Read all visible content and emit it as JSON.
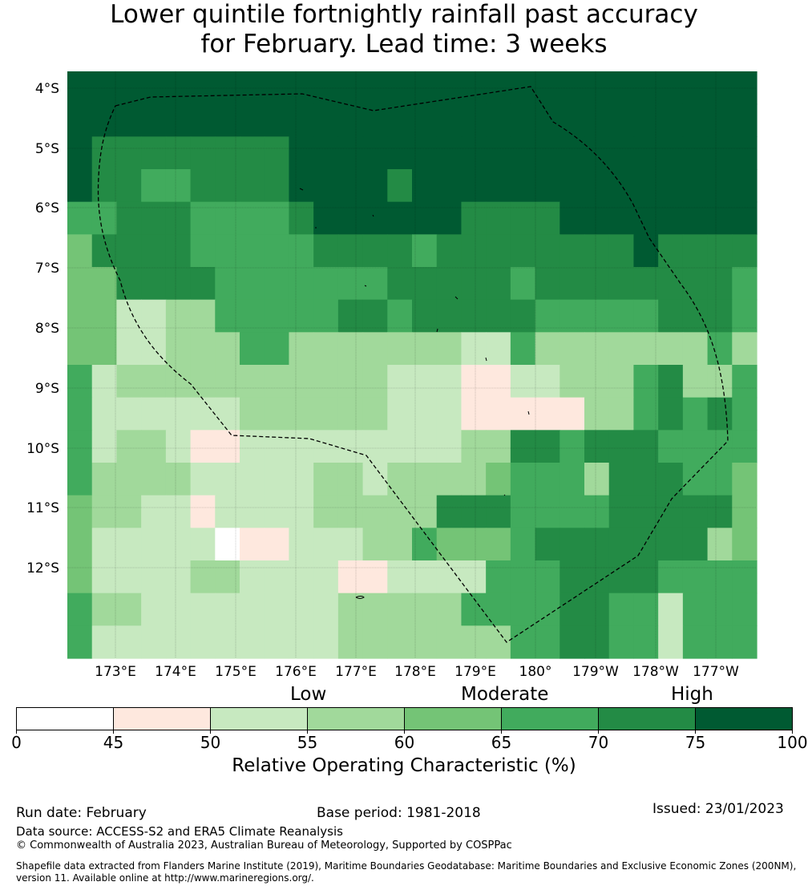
{
  "title_line1": "Lower quintile fortnightly rainfall past accuracy",
  "title_line2": "for February. Lead time: 3 weeks",
  "map": {
    "lat_labels": [
      "4°S",
      "5°S",
      "6°S",
      "7°S",
      "8°S",
      "9°S",
      "10°S",
      "11°S",
      "12°S"
    ],
    "lon_labels": [
      "173°E",
      "174°E",
      "175°E",
      "176°E",
      "177°E",
      "178°E",
      "179°E",
      "180°",
      "179°W",
      "178°W",
      "177°W"
    ],
    "colors": {
      "c45": "#fee8de",
      "c50": "#c7e9c0",
      "c55": "#a1d99b",
      "c60": "#74c476",
      "c65": "#41ab5d",
      "c70": "#238b45",
      "c75": "#005a32"
    }
  },
  "chart_data": {
    "type": "heatmap",
    "title": "Lower quintile fortnightly rainfall past accuracy for February. Lead time: 3 weeks",
    "lon_range": [
      "172°E",
      "176.6°W"
    ],
    "lat_range": [
      "3.7°S",
      "13.6°S"
    ],
    "value_units": "ROC %",
    "rows": [
      "7777777777777777777777777777",
      "7777777777777777777777777777",
      "7666666667777777777777777777",
      "7665566667777677777777777777",
      "5566655556777777666677777777",
      "4666655555666656666666676666",
      "4466665555555666665666666665",
      "4422335555566566666555556665",
      "4422333553333333225333333353",
      "5233333333333222112233356335",
      "5222222333333222111113356565",
      "5233211222222222336656665555",
      "5333322222332333345553666554",
      "4332212222333336665555666664",
      "4222220112223354445666666634",
      "4222233222211222255566665555",
      "5332222222233333555566552555",
      "5222222222233333335566552555"
    ]
  },
  "colorbar": {
    "ticks": [
      "0",
      "45",
      "50",
      "55",
      "60",
      "65",
      "70",
      "75",
      "100"
    ],
    "categories": [
      "Low",
      "Moderate",
      "High"
    ],
    "title": "Relative Operating Characteristic (%)",
    "colors": [
      "#ffffff",
      "#fee8de",
      "#c7e9c0",
      "#a1d99b",
      "#74c476",
      "#41ab5d",
      "#238b45",
      "#005a32"
    ]
  },
  "footer": {
    "run_date": "Run date: February",
    "base_period": "Base period: 1981-2018",
    "issued": "Issued: 23/01/2023",
    "data_source": "Data source: ACCESS-S2 and ERA5 Climate Reanalysis",
    "copyright": "© Commonwealth of Australia 2023, Australian Bureau of Meteorology, Supported by COSPPac",
    "shapefile_line1": "Shapefile data extracted from Flanders Marine Institute (2019), Maritime Boundaries Geodatabase: Maritime Boundaries and Exclusive Economic Zones (200NM),",
    "shapefile_line2": "version 11. Available online at http://www.marineregions.org/."
  }
}
